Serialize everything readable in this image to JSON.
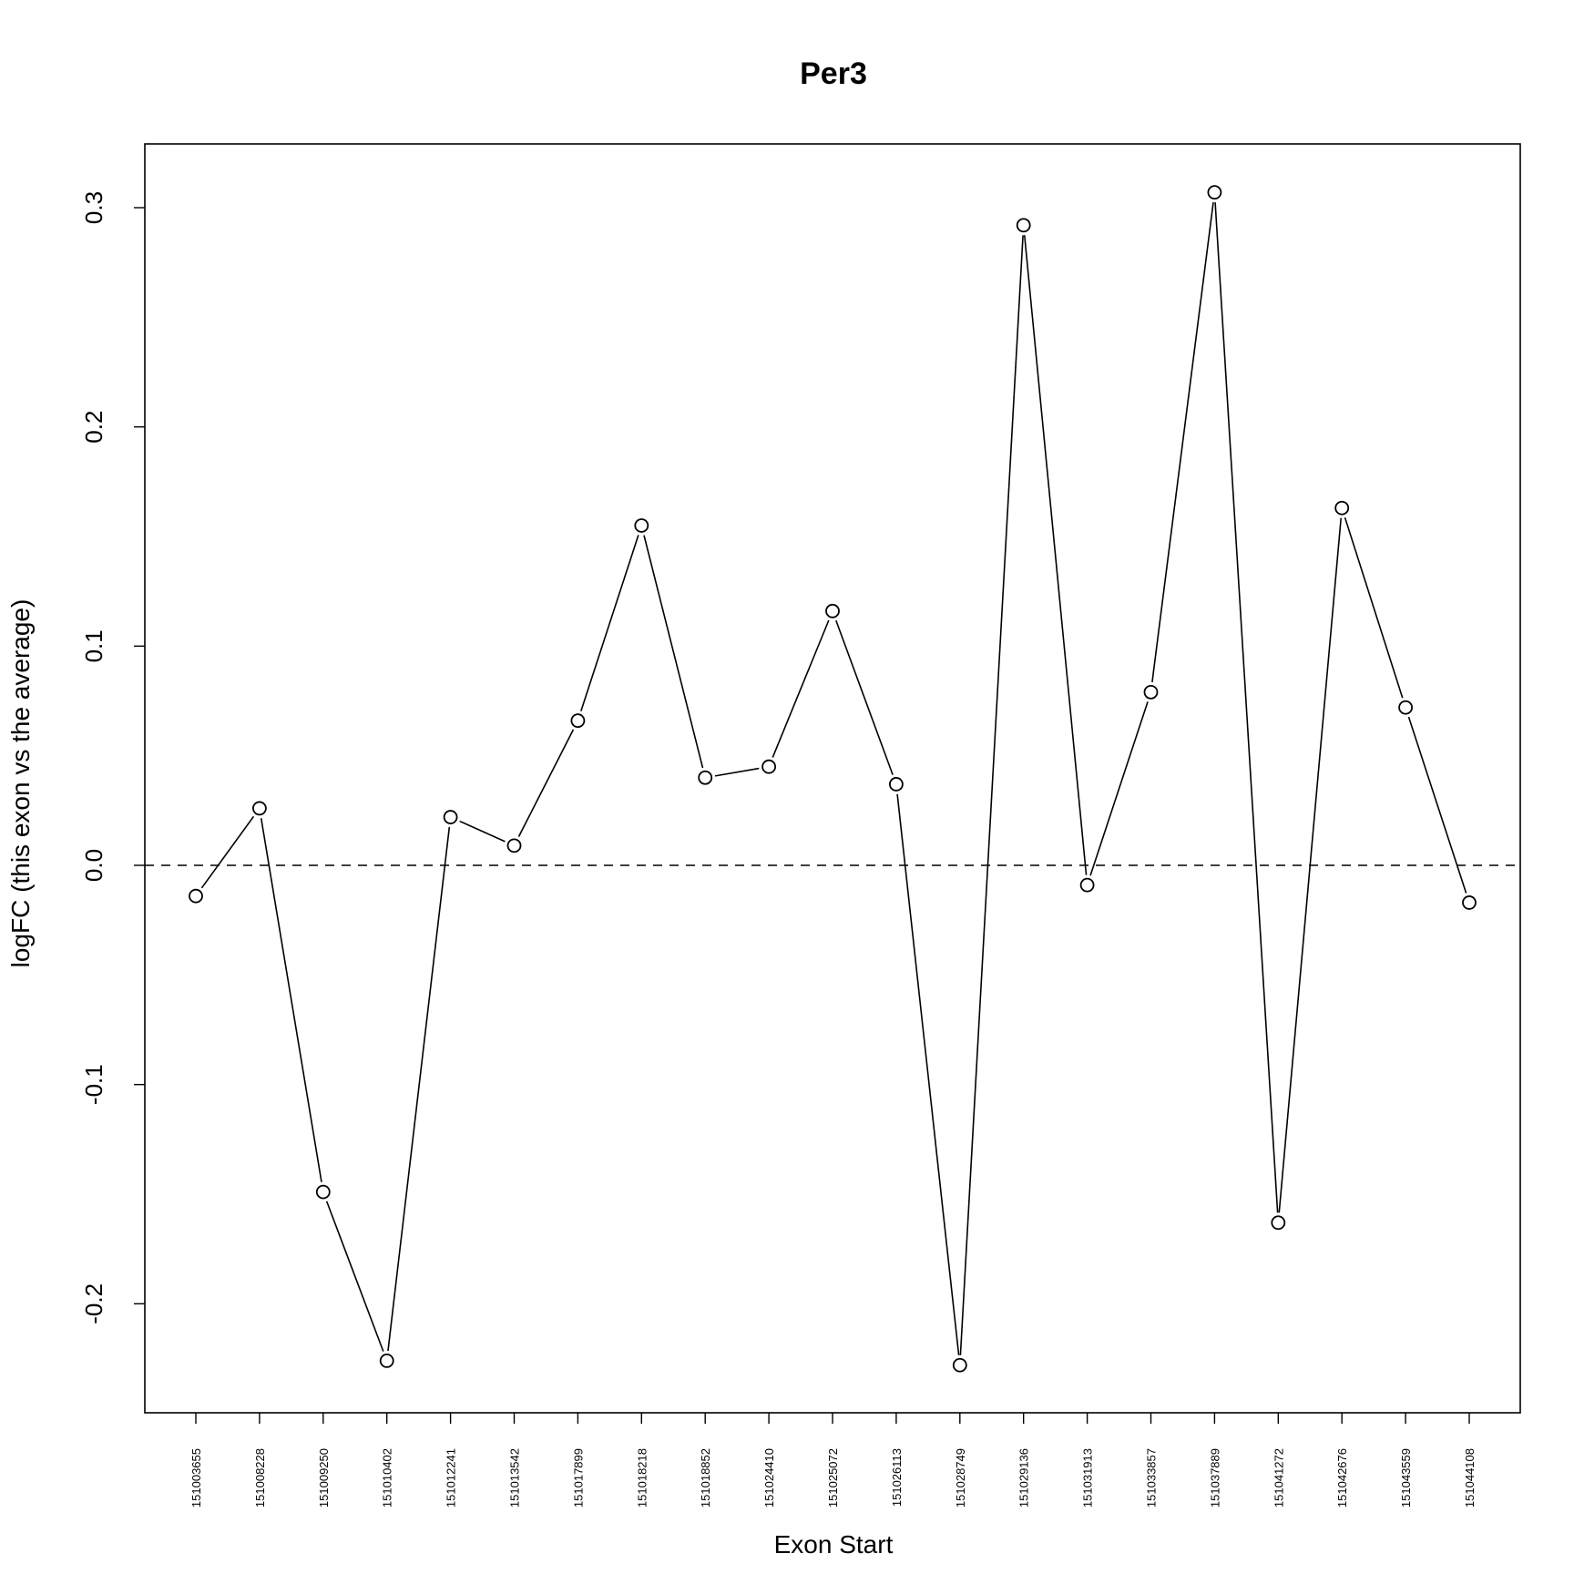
{
  "chart_data": {
    "type": "line",
    "title": "Per3",
    "xlabel": "Exon Start",
    "ylabel": "logFC (this exon vs the average)",
    "categories": [
      "151003655",
      "151008228",
      "151009250",
      "151010402",
      "151012241",
      "151013542",
      "151017899",
      "151018218",
      "151018852",
      "151024410",
      "151025072",
      "151026113",
      "151028749",
      "151029136",
      "151031913",
      "151033857",
      "151037889",
      "151041272",
      "151042676",
      "151043559",
      "151044108"
    ],
    "values": [
      -0.014,
      0.026,
      -0.149,
      -0.226,
      0.022,
      0.009,
      0.066,
      0.155,
      0.04,
      0.045,
      0.116,
      0.037,
      -0.228,
      0.292,
      -0.009,
      0.079,
      0.307,
      -0.163,
      0.163,
      0.072,
      -0.017
    ],
    "yticks": [
      -0.2,
      -0.1,
      0.0,
      0.1,
      0.2,
      0.3
    ],
    "ytick_labels": [
      "-0.2",
      "-0.1",
      "0.0",
      "0.1",
      "0.2",
      "0.3"
    ],
    "ylim": [
      -0.25,
      0.33
    ],
    "reference_line": 0.0,
    "marker": "open-circle",
    "line_style": "segments-gapped",
    "grid": false,
    "legend": "none",
    "colors": {
      "line": "#000000",
      "marker_fill": "#ffffff",
      "background": "#ffffff"
    }
  }
}
